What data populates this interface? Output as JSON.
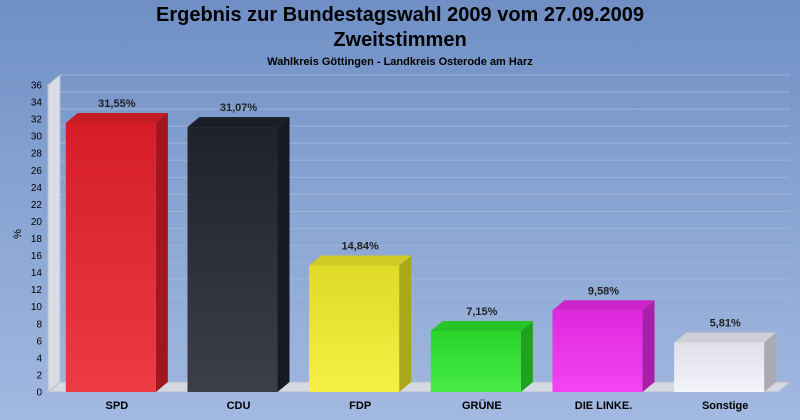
{
  "chart_data": {
    "type": "bar",
    "title": "Ergebnis zur Bundestagswahl 2009 vom 27.09.2009",
    "title_line2": "Zweitstimmen",
    "subtitle": "Wahlkreis Göttingen - Landkreis Osterode am Harz",
    "ylabel": "%",
    "xlabel": "",
    "ylim": [
      0,
      36
    ],
    "ytick_step": 2,
    "grid": true,
    "categories": [
      "SPD",
      "CDU",
      "FDP",
      "GRÜNE",
      "DIE LINKE.",
      "Sonstige"
    ],
    "values": [
      31.55,
      31.07,
      14.84,
      7.15,
      9.58,
      5.81
    ],
    "data_labels": [
      "31,55%",
      "31,07%",
      "14,84%",
      "7,15%",
      "9,58%",
      "5,81%"
    ],
    "colors": [
      "#e8202a",
      "#22252f",
      "#f4ee2a",
      "#2ee82e",
      "#f02cf0",
      "#f2f4fb"
    ]
  }
}
